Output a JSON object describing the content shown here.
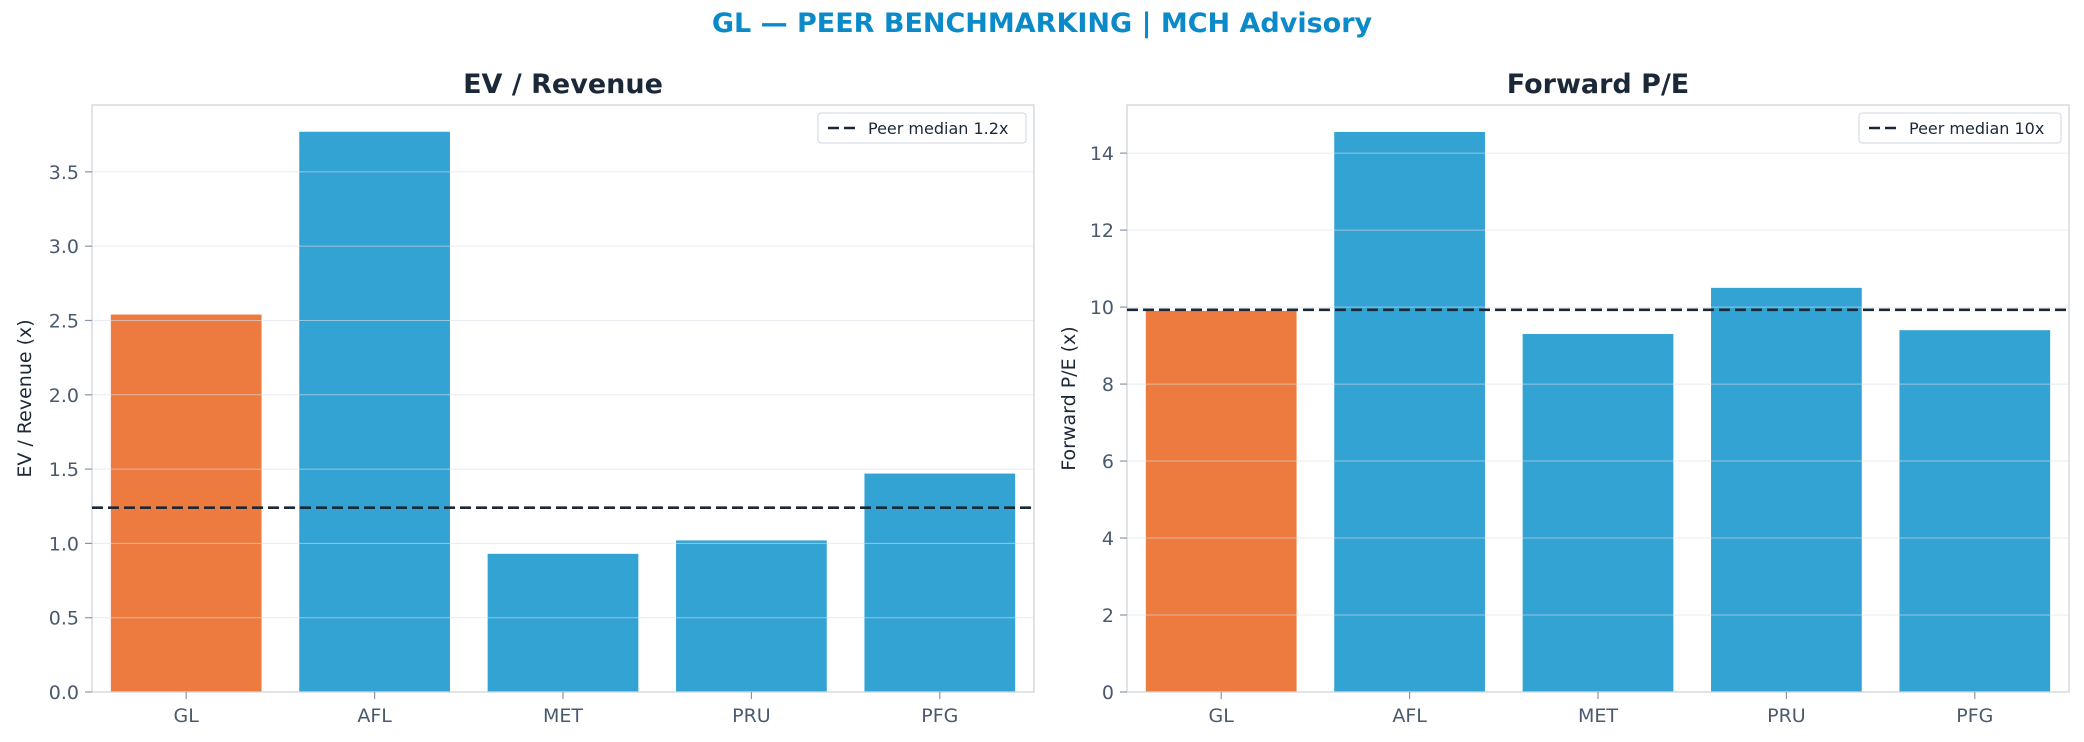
{
  "suptitle": "GL — PEER BENCHMARKING | MCH Advisory",
  "colors": {
    "highlight": "#ed7b3f",
    "peer": "#33a3d4",
    "median_line": "#1b2838",
    "title": "#0a8ac8"
  },
  "chart_data": [
    {
      "type": "bar",
      "title": "EV / Revenue",
      "ylabel": "EV / Revenue (x)",
      "categories": [
        "GL",
        "AFL",
        "MET",
        "PRU",
        "PFG"
      ],
      "values": [
        2.54,
        3.77,
        0.93,
        1.02,
        1.47
      ],
      "highlight": "GL",
      "ylim": [
        0,
        3.95
      ],
      "yticks": [
        0.0,
        0.5,
        1.0,
        1.5,
        2.0,
        2.5,
        3.0,
        3.5
      ],
      "ytick_labels": [
        "0.0",
        "0.5",
        "1.0",
        "1.5",
        "2.0",
        "2.5",
        "3.0",
        "3.5"
      ],
      "reference_line": {
        "value": 1.24,
        "label": "Peer median 1.2x"
      },
      "legend": "top-right",
      "grid": true
    },
    {
      "type": "bar",
      "title": "Forward P/E",
      "ylabel": "Forward P/E (x)",
      "categories": [
        "GL",
        "AFL",
        "MET",
        "PRU",
        "PFG"
      ],
      "values": [
        9.9,
        14.55,
        9.3,
        10.5,
        9.4
      ],
      "highlight": "GL",
      "ylim": [
        0,
        15.25
      ],
      "yticks": [
        0,
        2,
        4,
        6,
        8,
        10,
        12,
        14
      ],
      "ytick_labels": [
        "0",
        "2",
        "4",
        "6",
        "8",
        "10",
        "12",
        "14"
      ],
      "reference_line": {
        "value": 9.93,
        "label": "Peer median 10x"
      },
      "legend": "top-right",
      "grid": true
    }
  ]
}
